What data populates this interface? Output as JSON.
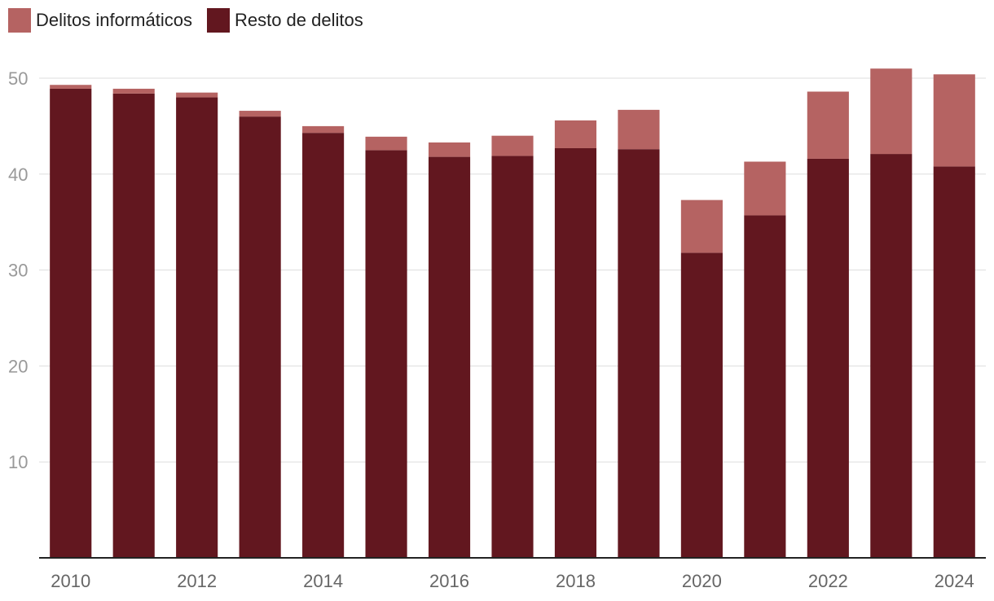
{
  "chart_data": {
    "type": "bar",
    "stacked": true,
    "title": "",
    "xlabel": "",
    "ylabel": "",
    "ylim": [
      0,
      52
    ],
    "yticks": [
      10,
      20,
      30,
      40,
      50
    ],
    "grid": true,
    "legend_position": "top-left",
    "categories": [
      "2010",
      "2011",
      "2012",
      "2013",
      "2014",
      "2015",
      "2016",
      "2017",
      "2018",
      "2019",
      "2020",
      "2021",
      "2022",
      "2023",
      "2024"
    ],
    "x_tick_labels": [
      "2010",
      "",
      "2012",
      "",
      "2014",
      "",
      "2016",
      "",
      "2018",
      "",
      "2020",
      "",
      "2022",
      "",
      "2024"
    ],
    "series": [
      {
        "name": "Resto de delitos",
        "color": "#62171f",
        "values": [
          48.9,
          48.4,
          48.0,
          46.0,
          44.3,
          42.5,
          41.8,
          41.9,
          42.7,
          42.6,
          31.8,
          35.7,
          41.6,
          42.1,
          40.8
        ]
      },
      {
        "name": "Delitos informáticos",
        "color": "#b56362",
        "values": [
          0.4,
          0.5,
          0.5,
          0.6,
          0.7,
          1.4,
          1.5,
          2.1,
          2.9,
          4.1,
          5.5,
          5.6,
          7.0,
          8.9,
          9.6
        ]
      }
    ],
    "legend": [
      {
        "label": "Delitos informáticos",
        "color": "#b56362"
      },
      {
        "label": "Resto de delitos",
        "color": "#62171f"
      }
    ]
  }
}
